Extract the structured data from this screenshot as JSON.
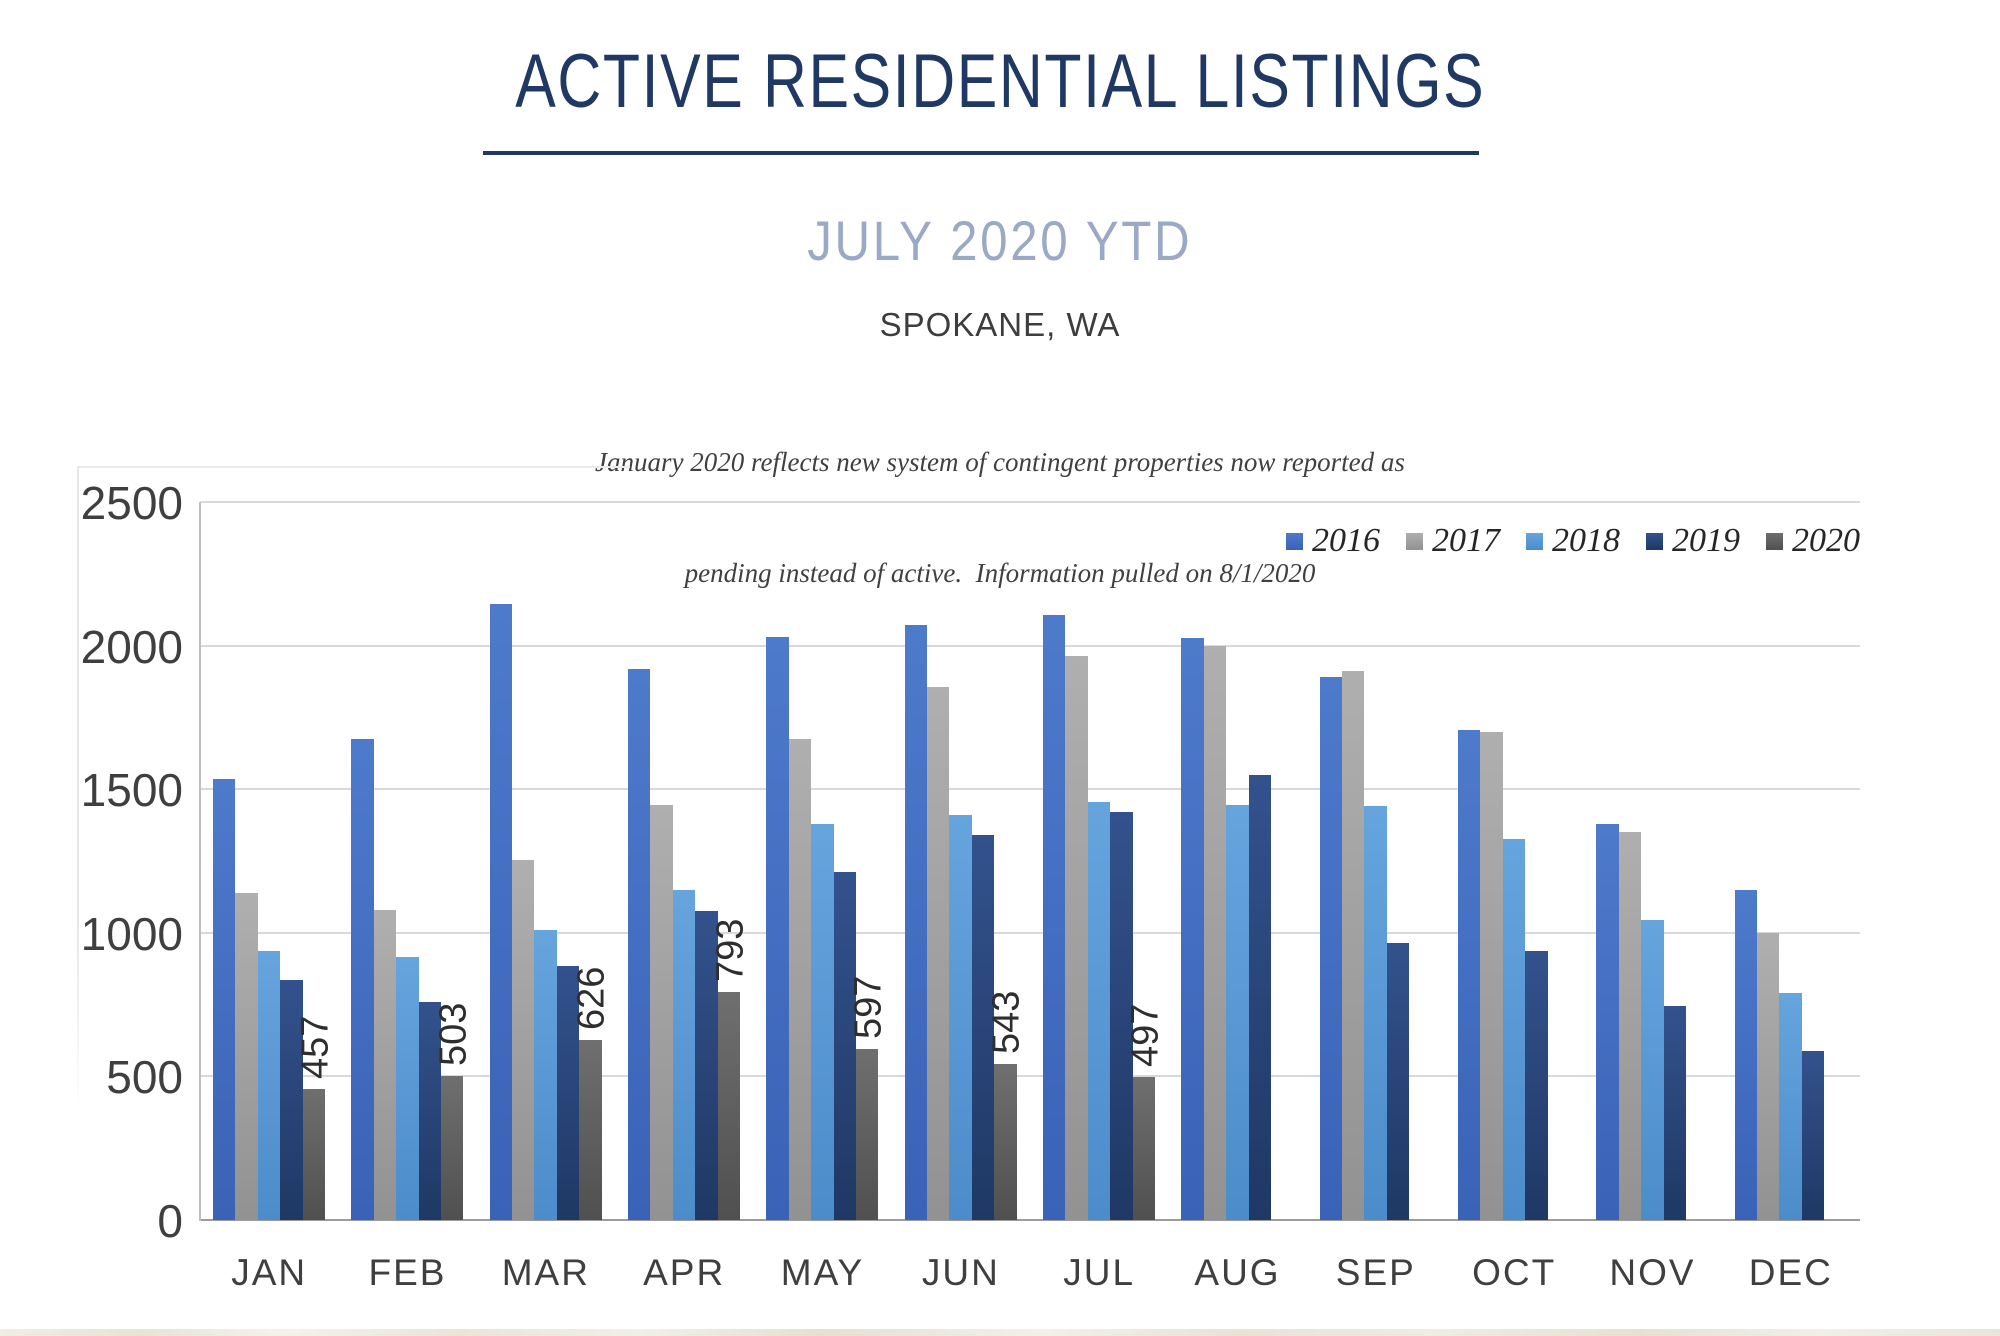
{
  "header": {
    "title": "ACTIVE RESIDENTIAL LISTINGS",
    "subtitle": "JULY 2020 YTD",
    "location": "SPOKANE, WA",
    "note_line1": "January 2020 reflects new system of contingent properties now reported as",
    "note_line2": "pending instead of active.  Information pulled on 8/1/2020"
  },
  "colors": {
    "title_navy": "#1F3864",
    "subtitle_bluegray": "#9AA9C6",
    "gridline": "#D9D9D9",
    "axis_line": "#9C9C9C",
    "tick_text": "#3F3F3F"
  },
  "chart_data": {
    "type": "bar",
    "title": "ACTIVE RESIDENTIAL LISTINGS",
    "subtitle": "JULY 2020 YTD",
    "location": "SPOKANE, WA",
    "categories": [
      "JAN",
      "FEB",
      "MAR",
      "APR",
      "MAY",
      "JUN",
      "JUL",
      "AUG",
      "SEP",
      "OCT",
      "NOV",
      "DEC"
    ],
    "series": [
      {
        "name": "2016",
        "color_top": "#4E7ACC",
        "color_bottom": "#3A62B6",
        "values": [
          1535,
          1675,
          2145,
          1920,
          2030,
          2070,
          2105,
          2025,
          1890,
          1705,
          1380,
          1150
        ]
      },
      {
        "name": "2017",
        "color_top": "#AFAFAF",
        "color_bottom": "#929292",
        "values": [
          1140,
          1080,
          1255,
          1445,
          1675,
          1855,
          1965,
          2000,
          1910,
          1700,
          1350,
          1000
        ]
      },
      {
        "name": "2018",
        "color_top": "#66A4DE",
        "color_bottom": "#4C8CCA",
        "values": [
          935,
          915,
          1010,
          1150,
          1380,
          1410,
          1455,
          1445,
          1440,
          1325,
          1045,
          790
        ]
      },
      {
        "name": "2019",
        "color_top": "#33528D",
        "color_bottom": "#1F3864",
        "values": [
          835,
          760,
          885,
          1075,
          1210,
          1340,
          1420,
          1550,
          965,
          935,
          745,
          590
        ]
      },
      {
        "name": "2020",
        "color_top": "#6F6F6F",
        "color_bottom": "#505050",
        "show_data_labels": true,
        "values": [
          457,
          503,
          626,
          793,
          597,
          543,
          497,
          null,
          null,
          null,
          null,
          null
        ]
      }
    ],
    "ylim": [
      0,
      2500
    ],
    "yticks": [
      0,
      500,
      1000,
      1500,
      2000,
      2500
    ],
    "grid": true,
    "legend_position": "top-right",
    "legend_entries": [
      "2016",
      "2017",
      "2018",
      "2019",
      "2020"
    ]
  }
}
